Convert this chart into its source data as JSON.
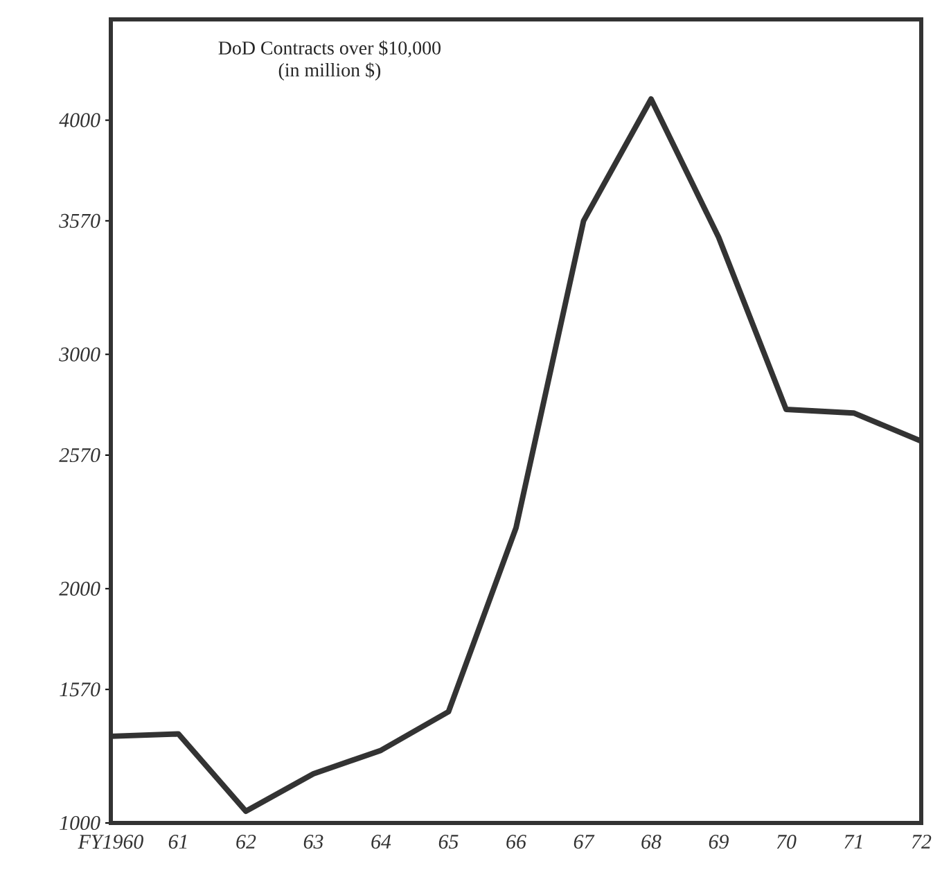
{
  "chart_data": {
    "type": "line",
    "title": "DoD Contracts over $10,000",
    "subtitle": "(in million $)",
    "x": [
      1960,
      1961,
      1962,
      1963,
      1964,
      1965,
      1966,
      1967,
      1968,
      1969,
      1970,
      1971,
      1972
    ],
    "values": [
      1370,
      1380,
      1050,
      1210,
      1310,
      1475,
      2260,
      3570,
      4090,
      3500,
      2765,
      2750,
      2630
    ],
    "color": "#333333",
    "line_style": "solid",
    "xlim": [
      1960,
      1972
    ],
    "ylim": [
      1000,
      4430
    ],
    "xticks": [
      {
        "value": 1960,
        "label": "FY1960"
      },
      {
        "value": 1961,
        "label": "61"
      },
      {
        "value": 1962,
        "label": "62"
      },
      {
        "value": 1963,
        "label": "63"
      },
      {
        "value": 1964,
        "label": "64"
      },
      {
        "value": 1965,
        "label": "65"
      },
      {
        "value": 1966,
        "label": "66"
      },
      {
        "value": 1967,
        "label": "67"
      },
      {
        "value": 1968,
        "label": "68"
      },
      {
        "value": 1969,
        "label": "69"
      },
      {
        "value": 1970,
        "label": "70"
      },
      {
        "value": 1971,
        "label": "71"
      },
      {
        "value": 1972,
        "label": "72"
      }
    ],
    "yticks": [
      1000,
      1570,
      2000,
      2570,
      3000,
      3570,
      4000
    ]
  }
}
